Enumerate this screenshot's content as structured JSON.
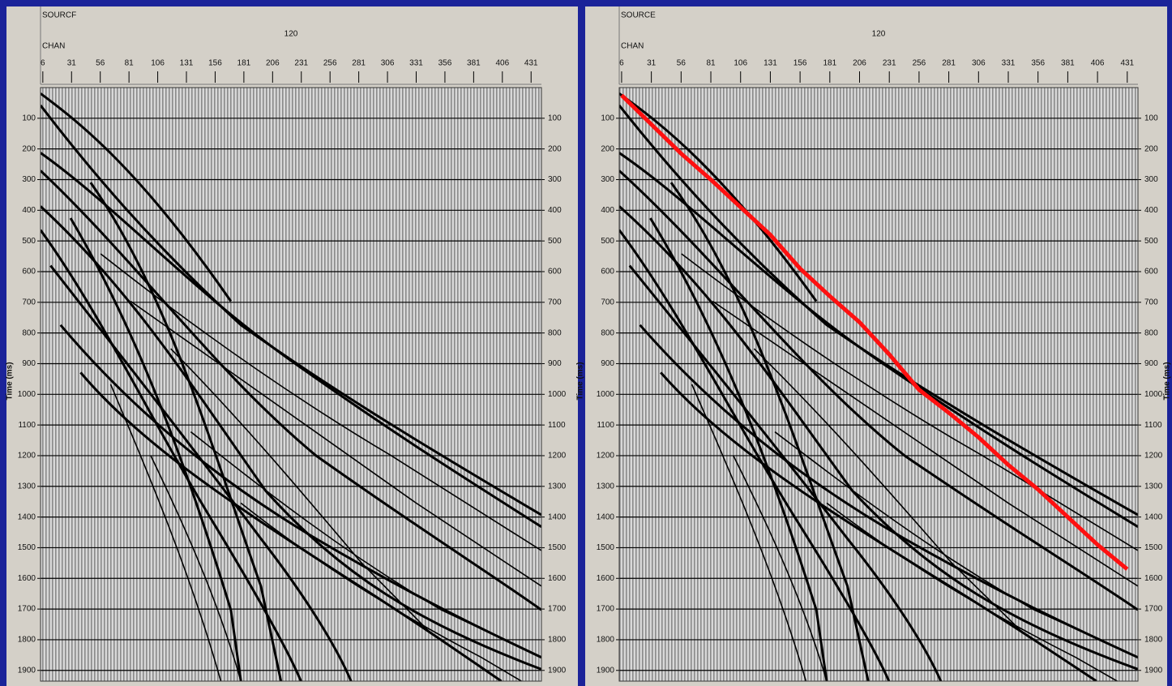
{
  "chart_data": [
    {
      "type": "seismic",
      "header_label": "SOURCF",
      "header_value": "120",
      "x_label": "CHAN",
      "y_label": "Time (ms)",
      "xlim": [
        4,
        440
      ],
      "xticks": [
        6,
        31,
        56,
        81,
        106,
        131,
        156,
        181,
        206,
        231,
        256,
        281,
        306,
        331,
        356,
        381,
        406,
        431
      ],
      "ylim": [
        0,
        1935
      ],
      "yticks": [
        100,
        200,
        300,
        400,
        500,
        600,
        700,
        800,
        900,
        1000,
        1100,
        1200,
        1300,
        1400,
        1500,
        1600,
        1700,
        1800,
        1900
      ],
      "grid": true
    },
    {
      "type": "seismic",
      "header_label": "SOURCE",
      "header_value": "120",
      "x_label": "CHAN",
      "y_label": "Time (ms)",
      "xlim": [
        4,
        440
      ],
      "xticks": [
        6,
        31,
        56,
        81,
        106,
        131,
        156,
        181,
        206,
        231,
        256,
        281,
        306,
        331,
        356,
        381,
        406,
        431
      ],
      "ylim": [
        0,
        1935
      ],
      "yticks": [
        100,
        200,
        300,
        400,
        500,
        600,
        700,
        800,
        900,
        1000,
        1100,
        1200,
        1300,
        1400,
        1500,
        1600,
        1700,
        1800,
        1900
      ],
      "grid": true,
      "series": [
        {
          "color": "#ff1010",
          "x": [
            6,
            31,
            56,
            81,
            106,
            131,
            156,
            181,
            206,
            231,
            256,
            281,
            306,
            331,
            356,
            381,
            406,
            431
          ],
          "values": [
            25,
            120,
            215,
            300,
            390,
            480,
            590,
            680,
            765,
            870,
            985,
            1060,
            1140,
            1230,
            1310,
            1400,
            1490,
            1570
          ]
        }
      ]
    }
  ]
}
